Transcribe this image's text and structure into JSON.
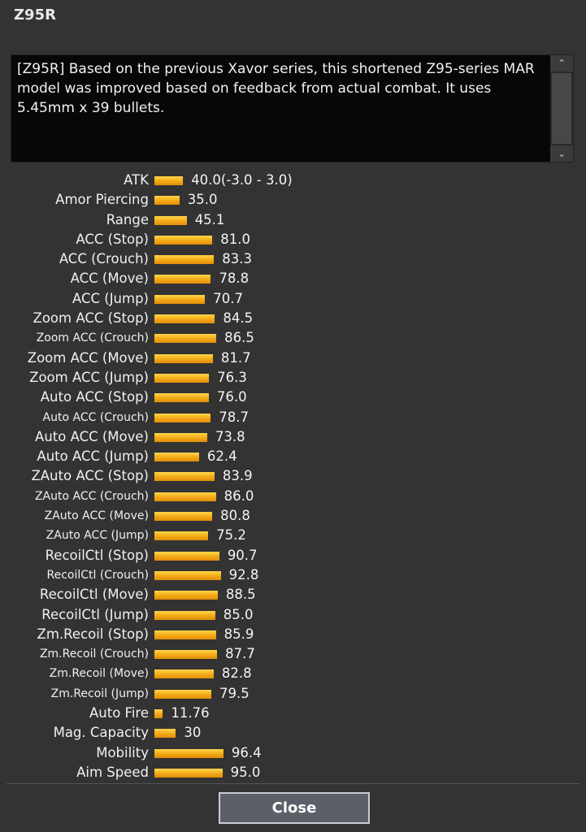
{
  "window": {
    "title": "Z95R"
  },
  "description": "[Z95R] Based on the previous Xavor series, this shortened Z95-series MAR model was improved based on feedback from actual combat. It uses 5.45mm x 39 bullets.",
  "colors": {
    "bar": "#f3a916",
    "background": "#333333",
    "description_bg": "#070707"
  },
  "stats": [
    {
      "label": "ATK",
      "value": "40.0(-3.0 - 3.0)",
      "level": 40.0
    },
    {
      "label": "Amor Piercing",
      "value": "35.0",
      "level": 35.0
    },
    {
      "label": "Range",
      "value": "45.1",
      "level": 45.1
    },
    {
      "label": "ACC (Stop)",
      "value": "81.0",
      "level": 81.0
    },
    {
      "label": "ACC (Crouch)",
      "value": "83.3",
      "level": 83.3
    },
    {
      "label": "ACC (Move)",
      "value": "78.8",
      "level": 78.8
    },
    {
      "label": "ACC (Jump)",
      "value": "70.7",
      "level": 70.7
    },
    {
      "label": "Zoom ACC (Stop)",
      "value": "84.5",
      "level": 84.5
    },
    {
      "label": "Zoom ACC (Crouch)",
      "value": "86.5",
      "level": 86.5
    },
    {
      "label": "Zoom ACC (Move)",
      "value": "81.7",
      "level": 81.7
    },
    {
      "label": "Zoom ACC (Jump)",
      "value": "76.3",
      "level": 76.3
    },
    {
      "label": "Auto ACC (Stop)",
      "value": "76.0",
      "level": 76.0
    },
    {
      "label": "Auto ACC (Crouch)",
      "value": "78.7",
      "level": 78.7
    },
    {
      "label": "Auto ACC (Move)",
      "value": "73.8",
      "level": 73.8
    },
    {
      "label": "Auto ACC (Jump)",
      "value": "62.4",
      "level": 62.4
    },
    {
      "label": "ZAuto ACC (Stop)",
      "value": "83.9",
      "level": 83.9
    },
    {
      "label": "ZAuto ACC (Crouch)",
      "value": "86.0",
      "level": 86.0
    },
    {
      "label": "ZAuto ACC (Move)",
      "value": "80.8",
      "level": 80.8
    },
    {
      "label": "ZAuto ACC (Jump)",
      "value": "75.2",
      "level": 75.2
    },
    {
      "label": "RecoilCtl (Stop)",
      "value": "90.7",
      "level": 90.7
    },
    {
      "label": "RecoilCtl (Crouch)",
      "value": "92.8",
      "level": 92.8
    },
    {
      "label": "RecoilCtl (Move)",
      "value": "88.5",
      "level": 88.5
    },
    {
      "label": "RecoilCtl (Jump)",
      "value": "85.0",
      "level": 85.0
    },
    {
      "label": "Zm.Recoil (Stop)",
      "value": "85.9",
      "level": 85.9
    },
    {
      "label": "Zm.Recoil (Crouch)",
      "value": "87.7",
      "level": 87.7
    },
    {
      "label": "Zm.Recoil (Move)",
      "value": "82.8",
      "level": 82.8
    },
    {
      "label": "Zm.Recoil (Jump)",
      "value": "79.5",
      "level": 79.5
    },
    {
      "label": "Auto Fire",
      "value": "11.76",
      "level": 11.76
    },
    {
      "label": "Mag. Capacity",
      "value": "30",
      "level": 30
    },
    {
      "label": "Mobility",
      "value": "96.4",
      "level": 96.4
    },
    {
      "label": "Aim Speed",
      "value": "95.0",
      "level": 95.0
    }
  ],
  "buttons": {
    "close_label": "Close"
  }
}
